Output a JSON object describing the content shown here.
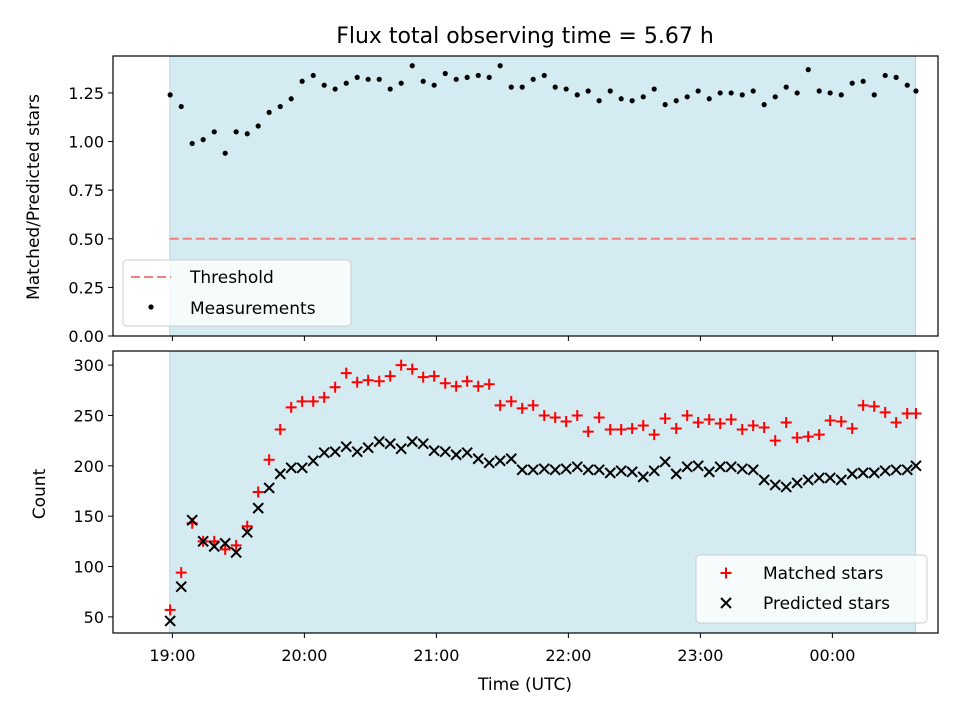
{
  "figure": {
    "title": "Flux total observing time = 5.67 h"
  },
  "chart_data": [
    {
      "type": "scatter",
      "panel": "top",
      "title": "Flux total observing time = 5.67 h",
      "xlabel": "",
      "ylabel": "Matched/Predicted stars",
      "x_ticks": [
        "19:00",
        "20:00",
        "21:00",
        "22:00",
        "23:00",
        "00:00"
      ],
      "x_range_hours": [
        18.55,
        24.8
      ],
      "ylim": [
        0,
        1.44
      ],
      "y_ticks": [
        "0.00",
        "0.25",
        "0.50",
        "0.75",
        "1.00",
        "1.25"
      ],
      "shaded_interval_hours": [
        18.98,
        24.63
      ],
      "shade_color": "#d3ebf1",
      "threshold": {
        "name": "Threshold",
        "value": 0.5,
        "color": "#f08080"
      },
      "legend": {
        "placement": "lower-left",
        "entries": [
          "Threshold",
          "Measurements"
        ]
      },
      "series": [
        {
          "name": "Measurements",
          "marker": "dot",
          "color": "#000000",
          "x": [
            18.983,
            19.067,
            19.15,
            19.233,
            19.317,
            19.4,
            19.483,
            19.567,
            19.65,
            19.733,
            19.817,
            19.9,
            19.983,
            20.067,
            20.15,
            20.233,
            20.317,
            20.4,
            20.483,
            20.567,
            20.65,
            20.733,
            20.817,
            20.9,
            20.983,
            21.067,
            21.15,
            21.233,
            21.317,
            21.4,
            21.483,
            21.567,
            21.65,
            21.733,
            21.817,
            21.9,
            21.983,
            22.067,
            22.15,
            22.233,
            22.317,
            22.4,
            22.483,
            22.567,
            22.65,
            22.733,
            22.817,
            22.9,
            22.983,
            23.067,
            23.15,
            23.233,
            23.317,
            23.4,
            23.483,
            23.567,
            23.65,
            23.733,
            23.817,
            23.9,
            23.983,
            24.067,
            24.15,
            24.233,
            24.317,
            24.4,
            24.483,
            24.567,
            24.633
          ],
          "y": [
            1.24,
            1.18,
            0.99,
            1.01,
            1.05,
            0.94,
            1.05,
            1.04,
            1.08,
            1.15,
            1.18,
            1.22,
            1.31,
            1.34,
            1.29,
            1.27,
            1.3,
            1.33,
            1.32,
            1.32,
            1.27,
            1.3,
            1.39,
            1.31,
            1.29,
            1.35,
            1.32,
            1.33,
            1.34,
            1.33,
            1.39,
            1.28,
            1.28,
            1.32,
            1.34,
            1.28,
            1.27,
            1.24,
            1.26,
            1.21,
            1.26,
            1.22,
            1.21,
            1.23,
            1.27,
            1.19,
            1.21,
            1.23,
            1.26,
            1.22,
            1.25,
            1.25,
            1.24,
            1.26,
            1.19,
            1.23,
            1.28,
            1.25,
            1.37,
            1.26,
            1.25,
            1.24,
            1.3,
            1.31,
            1.24,
            1.34,
            1.33,
            1.29,
            1.26
          ]
        }
      ]
    },
    {
      "type": "scatter",
      "panel": "bottom",
      "title": "",
      "xlabel": "Time (UTC)",
      "ylabel": "Count",
      "x_ticks": [
        "19:00",
        "20:00",
        "21:00",
        "22:00",
        "23:00",
        "00:00"
      ],
      "x_range_hours": [
        18.55,
        24.8
      ],
      "ylim": [
        34,
        314
      ],
      "y_ticks": [
        "50",
        "100",
        "150",
        "200",
        "250",
        "300"
      ],
      "shaded_interval_hours": [
        18.98,
        24.63
      ],
      "shade_color": "#d3ebf1",
      "legend": {
        "placement": "lower-right",
        "entries": [
          "Matched stars",
          "Predicted stars"
        ]
      },
      "series": [
        {
          "name": "Matched stars",
          "marker": "plus",
          "color": "#ff0000",
          "x": [
            18.983,
            19.067,
            19.15,
            19.233,
            19.317,
            19.4,
            19.483,
            19.567,
            19.65,
            19.733,
            19.817,
            19.9,
            19.983,
            20.067,
            20.15,
            20.233,
            20.317,
            20.4,
            20.483,
            20.567,
            20.65,
            20.733,
            20.817,
            20.9,
            20.983,
            21.067,
            21.15,
            21.233,
            21.317,
            21.4,
            21.483,
            21.567,
            21.65,
            21.733,
            21.817,
            21.9,
            21.983,
            22.067,
            22.15,
            22.233,
            22.317,
            22.4,
            22.483,
            22.567,
            22.65,
            22.733,
            22.817,
            22.9,
            22.983,
            23.067,
            23.15,
            23.233,
            23.317,
            23.4,
            23.483,
            23.567,
            23.65,
            23.733,
            23.817,
            23.9,
            23.983,
            24.067,
            24.15,
            24.233,
            24.317,
            24.4,
            24.483,
            24.567,
            24.633
          ],
          "y": [
            57,
            94,
            143,
            125,
            125,
            117,
            121,
            140,
            174,
            206,
            236,
            258,
            264,
            264,
            268,
            278,
            292,
            283,
            285,
            284,
            289,
            300,
            296,
            288,
            289,
            282,
            279,
            284,
            279,
            281,
            260,
            264,
            257,
            260,
            250,
            248,
            244,
            250,
            234,
            248,
            236,
            236,
            237,
            240,
            231,
            247,
            237,
            250,
            243,
            246,
            242,
            246,
            236,
            240,
            238,
            225,
            243,
            228,
            229,
            231,
            245,
            244,
            237,
            260,
            259,
            253,
            243,
            252,
            252
          ]
        },
        {
          "name": "Predicted stars",
          "marker": "x",
          "color": "#000000",
          "x": [
            18.983,
            19.067,
            19.15,
            19.233,
            19.317,
            19.4,
            19.483,
            19.567,
            19.65,
            19.733,
            19.817,
            19.9,
            19.983,
            20.067,
            20.15,
            20.233,
            20.317,
            20.4,
            20.483,
            20.567,
            20.65,
            20.733,
            20.817,
            20.9,
            20.983,
            21.067,
            21.15,
            21.233,
            21.317,
            21.4,
            21.483,
            21.567,
            21.65,
            21.733,
            21.817,
            21.9,
            21.983,
            22.067,
            22.15,
            22.233,
            22.317,
            22.4,
            22.483,
            22.567,
            22.65,
            22.733,
            22.817,
            22.9,
            22.983,
            23.067,
            23.15,
            23.233,
            23.317,
            23.4,
            23.483,
            23.567,
            23.65,
            23.733,
            23.817,
            23.9,
            23.983,
            24.067,
            24.15,
            24.233,
            24.317,
            24.4,
            24.483,
            24.567,
            24.633
          ],
          "y": [
            46,
            80,
            146,
            125,
            120,
            123,
            114,
            134,
            158,
            178,
            192,
            198,
            198,
            205,
            213,
            214,
            219,
            214,
            218,
            224,
            222,
            217,
            224,
            222,
            215,
            214,
            211,
            213,
            207,
            203,
            205,
            207,
            196,
            196,
            197,
            196,
            197,
            199,
            196,
            196,
            193,
            195,
            194,
            189,
            195,
            204,
            192,
            199,
            200,
            194,
            199,
            199,
            197,
            196,
            186,
            181,
            179,
            183,
            186,
            188,
            188,
            186,
            192,
            193,
            193,
            195,
            196,
            196,
            200
          ]
        }
      ]
    }
  ]
}
